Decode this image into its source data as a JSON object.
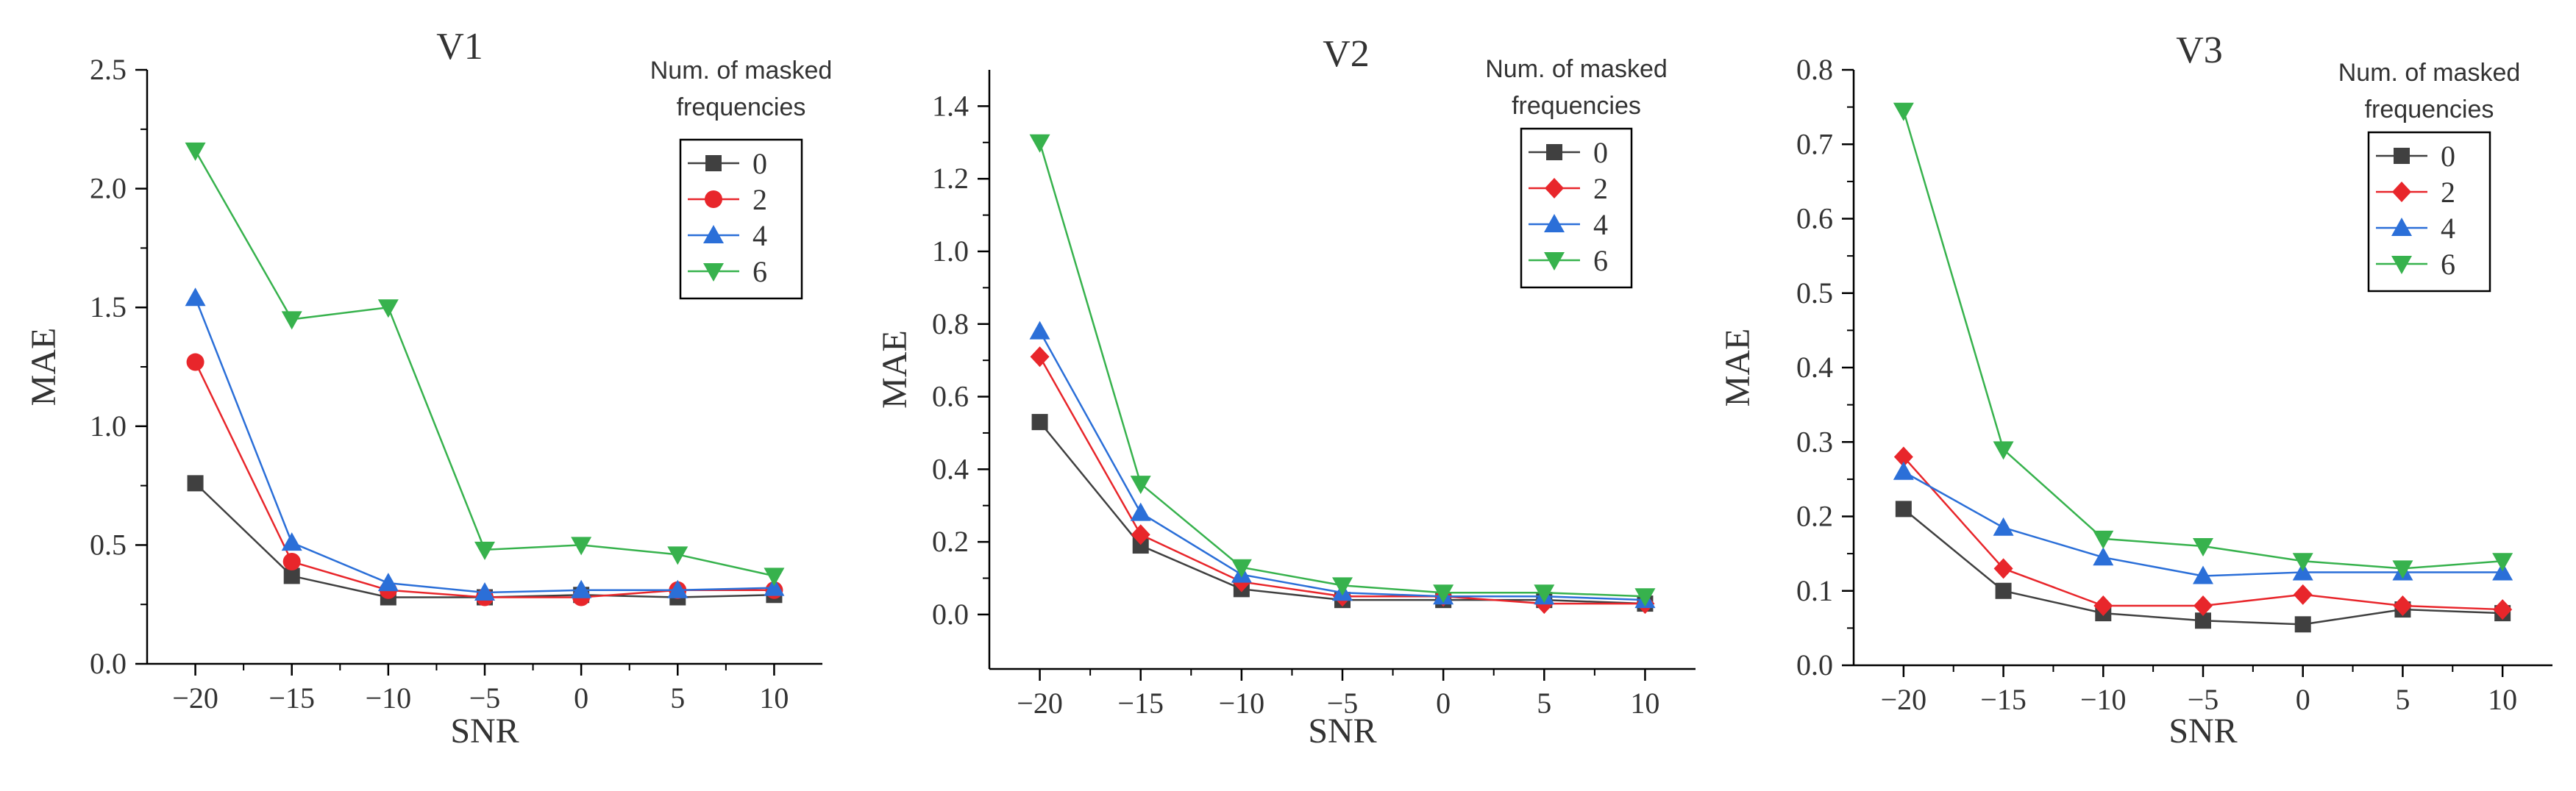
{
  "chart_data": [
    {
      "type": "line",
      "title": "V1",
      "xlabel": "SNR",
      "ylabel": "MAE",
      "x": [
        -20,
        -15,
        -10,
        -5,
        0,
        5,
        10
      ],
      "x_ticks": [
        "−20",
        "−15",
        "−10",
        "−5",
        "0",
        "5",
        "10"
      ],
      "ylim": [
        0,
        2.5
      ],
      "y_ticks": [
        "0.0",
        "0.5",
        "1.0",
        "1.5",
        "2.0",
        "2.5"
      ],
      "legend_title": [
        "Num. of masked",
        "frequencies"
      ],
      "legend_position": "top-right",
      "series": [
        {
          "name": "0",
          "color": "#404040",
          "marker": "square",
          "values": [
            0.76,
            0.37,
            0.28,
            0.28,
            0.29,
            0.28,
            0.29
          ]
        },
        {
          "name": "2",
          "color": "#e8262b",
          "marker": "circle",
          "values": [
            1.27,
            0.43,
            0.31,
            0.28,
            0.28,
            0.31,
            0.31
          ]
        },
        {
          "name": "4",
          "color": "#2b6fd8",
          "marker": "triangle-up",
          "values": [
            1.54,
            0.51,
            0.34,
            0.3,
            0.31,
            0.31,
            0.32
          ]
        },
        {
          "name": "6",
          "color": "#37b24d",
          "marker": "triangle-down",
          "values": [
            2.16,
            1.45,
            1.5,
            0.48,
            0.5,
            0.46,
            0.37
          ]
        }
      ]
    },
    {
      "type": "line",
      "title": "V2",
      "xlabel": "SNR",
      "ylabel": "MAE",
      "x": [
        -20,
        -15,
        -10,
        -5,
        0,
        5,
        10
      ],
      "x_ticks": [
        "−20",
        "−15",
        "−10",
        "−5",
        "0",
        "5",
        "10"
      ],
      "ylim": [
        -0.15,
        1.5
      ],
      "y_ticks": [
        "0.0",
        "0.2",
        "0.4",
        "0.6",
        "0.8",
        "1.0",
        "1.2",
        "1.4"
      ],
      "legend_title": [
        "Num. of masked",
        "frequencies"
      ],
      "legend_position": "top-right",
      "series": [
        {
          "name": "0",
          "color": "#404040",
          "marker": "square",
          "values": [
            0.53,
            0.19,
            0.07,
            0.04,
            0.04,
            0.04,
            0.03
          ]
        },
        {
          "name": "2",
          "color": "#e8262b",
          "marker": "diamond",
          "values": [
            0.71,
            0.22,
            0.09,
            0.05,
            0.05,
            0.03,
            0.03
          ]
        },
        {
          "name": "4",
          "color": "#2b6fd8",
          "marker": "triangle-up",
          "values": [
            0.78,
            0.28,
            0.11,
            0.06,
            0.05,
            0.05,
            0.04
          ]
        },
        {
          "name": "6",
          "color": "#37b24d",
          "marker": "triangle-down",
          "values": [
            1.3,
            0.36,
            0.13,
            0.08,
            0.06,
            0.06,
            0.05
          ]
        }
      ]
    },
    {
      "type": "line",
      "title": "V3",
      "xlabel": "SNR",
      "ylabel": "MAE",
      "x": [
        -20,
        -15,
        -10,
        -5,
        0,
        5,
        10
      ],
      "x_ticks": [
        "−20",
        "−15",
        "−10",
        "−5",
        "0",
        "5",
        "10"
      ],
      "ylim": [
        0,
        0.8
      ],
      "y_ticks": [
        "0.0",
        "0.1",
        "0.2",
        "0.3",
        "0.4",
        "0.5",
        "0.6",
        "0.7",
        "0.8"
      ],
      "legend_title": [
        "Num. of masked",
        "frequencies"
      ],
      "legend_position": "top-right",
      "series": [
        {
          "name": "0",
          "color": "#404040",
          "marker": "square",
          "values": [
            0.21,
            0.1,
            0.07,
            0.06,
            0.055,
            0.075,
            0.07
          ]
        },
        {
          "name": "2",
          "color": "#e8262b",
          "marker": "diamond",
          "values": [
            0.28,
            0.13,
            0.08,
            0.08,
            0.095,
            0.08,
            0.075
          ]
        },
        {
          "name": "4",
          "color": "#2b6fd8",
          "marker": "triangle-up",
          "values": [
            0.26,
            0.185,
            0.145,
            0.12,
            0.125,
            0.125,
            0.125
          ]
        },
        {
          "name": "6",
          "color": "#37b24d",
          "marker": "triangle-down",
          "values": [
            0.745,
            0.29,
            0.17,
            0.16,
            0.14,
            0.13,
            0.14
          ]
        }
      ]
    }
  ]
}
